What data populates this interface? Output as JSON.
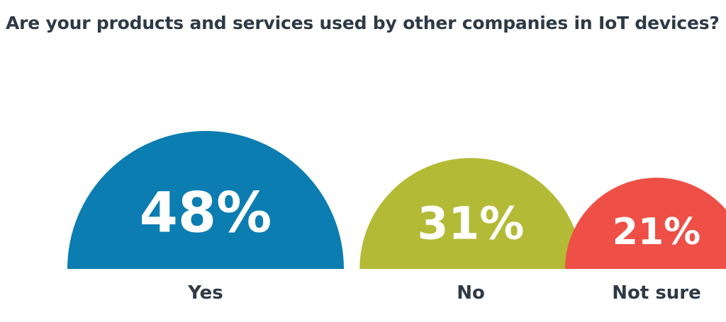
{
  "chart_data": {
    "type": "bar",
    "title": "Are your products and services used by other companies in IoT devices?",
    "categories": [
      "Yes",
      "No",
      "Not sure"
    ],
    "values": [
      48,
      31,
      21
    ],
    "value_labels": [
      "48%",
      "31%",
      "21%"
    ],
    "unit": "%",
    "colors": [
      "#0b7db1",
      "#b3ba36",
      "#ee4f46"
    ],
    "legend": "none",
    "grid": false
  }
}
